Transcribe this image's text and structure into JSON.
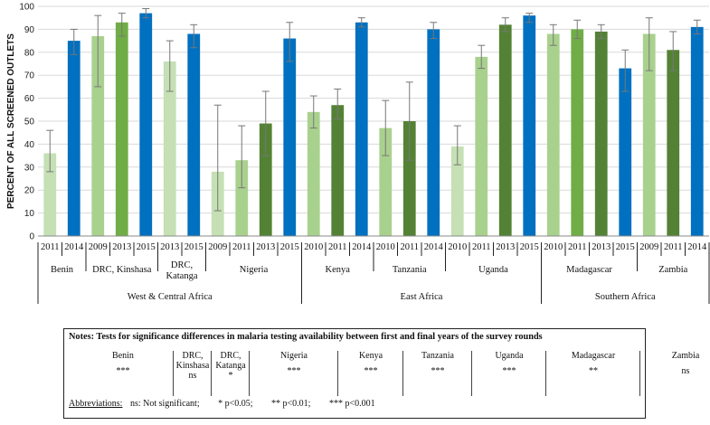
{
  "chart_data": {
    "type": "bar",
    "ylabel": "PERCENT OF ALL SCREENED OUTLETS",
    "ylim": [
      0,
      100
    ],
    "yticks": [
      0,
      10,
      20,
      30,
      40,
      50,
      60,
      70,
      80,
      90,
      100
    ],
    "error_bars": true,
    "groups": [
      {
        "country": "Benin",
        "region": "West & Central Africa",
        "bars": [
          {
            "year": "2011",
            "value": 36,
            "low": 28,
            "high": 46,
            "color": "#c5e0b4"
          },
          {
            "year": "2014",
            "value": 85,
            "low": 79,
            "high": 90,
            "color": "#0070c0"
          }
        ]
      },
      {
        "country": "DRC, Kinshasa",
        "region": "West & Central Africa",
        "bars": [
          {
            "year": "2009",
            "value": 87,
            "low": 65,
            "high": 96,
            "color": "#a9d18e"
          },
          {
            "year": "2013",
            "value": 93,
            "low": 87,
            "high": 97,
            "color": "#70ad47"
          },
          {
            "year": "2015",
            "value": 97,
            "low": 95,
            "high": 99,
            "color": "#0070c0"
          }
        ]
      },
      {
        "country": "DRC,\nKatanga",
        "region": "West & Central Africa",
        "bars": [
          {
            "year": "2013",
            "value": 76,
            "low": 63,
            "high": 85,
            "color": "#c5e0b4"
          },
          {
            "year": "2015",
            "value": 88,
            "low": 82,
            "high": 92,
            "color": "#0070c0"
          }
        ]
      },
      {
        "country": "Nigeria",
        "region": "West & Central Africa",
        "bars": [
          {
            "year": "2009",
            "value": 28,
            "low": 11,
            "high": 57,
            "color": "#c5e0b4"
          },
          {
            "year": "2011",
            "value": 33,
            "low": 21,
            "high": 48,
            "color": "#a9d18e"
          },
          {
            "year": "2013",
            "value": 49,
            "low": 35,
            "high": 63,
            "color": "#548235"
          },
          {
            "year": "2015",
            "value": 86,
            "low": 76,
            "high": 93,
            "color": "#0070c0"
          }
        ]
      },
      {
        "country": "Kenya",
        "region": "East Africa",
        "bars": [
          {
            "year": "2010",
            "value": 54,
            "low": 47,
            "high": 61,
            "color": "#a9d18e"
          },
          {
            "year": "2011",
            "value": 57,
            "low": 51,
            "high": 64,
            "color": "#548235"
          },
          {
            "year": "2014",
            "value": 93,
            "low": 91,
            "high": 95,
            "color": "#0070c0"
          }
        ]
      },
      {
        "country": "Tanzania",
        "region": "East Africa",
        "bars": [
          {
            "year": "2010",
            "value": 47,
            "low": 35,
            "high": 59,
            "color": "#a9d18e"
          },
          {
            "year": "2011",
            "value": 50,
            "low": 33,
            "high": 67,
            "color": "#548235"
          },
          {
            "year": "2014",
            "value": 90,
            "low": 86,
            "high": 93,
            "color": "#0070c0"
          }
        ]
      },
      {
        "country": "Uganda",
        "region": "East Africa",
        "bars": [
          {
            "year": "2010",
            "value": 39,
            "low": 31,
            "high": 48,
            "color": "#c5e0b4"
          },
          {
            "year": "2011",
            "value": 78,
            "low": 73,
            "high": 83,
            "color": "#a9d18e"
          },
          {
            "year": "2013",
            "value": 92,
            "low": 89,
            "high": 95,
            "color": "#548235"
          },
          {
            "year": "2015",
            "value": 96,
            "low": 93,
            "high": 97,
            "color": "#0070c0"
          }
        ]
      },
      {
        "country": "Madagascar",
        "region": "Southern Africa",
        "bars": [
          {
            "year": "2010",
            "value": 88,
            "low": 83,
            "high": 92,
            "color": "#a9d18e"
          },
          {
            "year": "2011",
            "value": 90,
            "low": 86,
            "high": 94,
            "color": "#70ad47"
          },
          {
            "year": "2013",
            "value": 89,
            "low": 86,
            "high": 92,
            "color": "#548235"
          },
          {
            "year": "2015",
            "value": 73,
            "low": 63,
            "high": 81,
            "color": "#0070c0"
          }
        ]
      },
      {
        "country": "Zambia",
        "region": "Southern Africa",
        "bars": [
          {
            "year": "2009",
            "value": 88,
            "low": 72,
            "high": 95,
            "color": "#a9d18e"
          },
          {
            "year": "2011",
            "value": 81,
            "low": 72,
            "high": 89,
            "color": "#548235"
          },
          {
            "year": "2014",
            "value": 91,
            "low": 88,
            "high": 94,
            "color": "#0070c0"
          }
        ]
      }
    ],
    "regions": [
      "West & Central Africa",
      "East Africa",
      "Southern Africa"
    ]
  },
  "notes": {
    "title": "Notes: Tests for significance differences in malaria testing availability between first and final years of the survey rounds",
    "columns": [
      {
        "name": "Benin",
        "sig": "***"
      },
      {
        "name": "DRC,\nKinshasa",
        "sig": "ns"
      },
      {
        "name": "DRC,\nKatanga",
        "sig": "*"
      },
      {
        "name": "Nigeria",
        "sig": "***"
      },
      {
        "name": "Kenya",
        "sig": "***"
      },
      {
        "name": "Tanzania",
        "sig": "***"
      },
      {
        "name": "Uganda",
        "sig": "***"
      },
      {
        "name": "Madagascar",
        "sig": "**"
      },
      {
        "name": "Zambia",
        "sig": "ns"
      }
    ],
    "abbreviations_label": "Abbreviations:",
    "abbreviations": [
      "ns: Not significant;",
      "* p<0.05;",
      "** p<0.01;",
      "*** p<0.001"
    ]
  }
}
